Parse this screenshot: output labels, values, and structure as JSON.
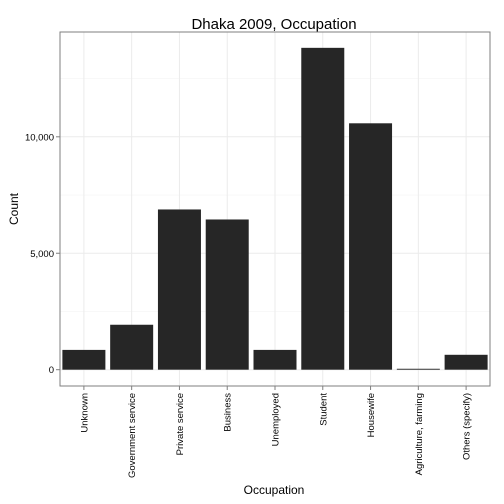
{
  "chart_data": {
    "type": "bar",
    "title": "Dhaka 2009, Occupation",
    "xlabel": "Occupation",
    "ylabel": "Count",
    "categories": [
      "Unknown",
      "Government service",
      "Private service",
      "Business",
      "Unemployed",
      "Student",
      "Housewife",
      "Agriculture, farming",
      "Others (specify)"
    ],
    "values": [
      850,
      1930,
      6880,
      6450,
      850,
      13820,
      10580,
      40,
      640
    ],
    "ylim": [
      -700,
      14500
    ],
    "y_ticks": [
      0,
      5000,
      10000
    ],
    "y_tick_labels": [
      "0",
      "5,000",
      "10,000"
    ],
    "grid": true,
    "legend": "none",
    "colors": {
      "bar": "#262626",
      "panel_border": "#7f7f7f",
      "grid_major": "#ebebeb",
      "grid_minor": "#f5f5f5",
      "tick": "#7f7f7f"
    }
  }
}
